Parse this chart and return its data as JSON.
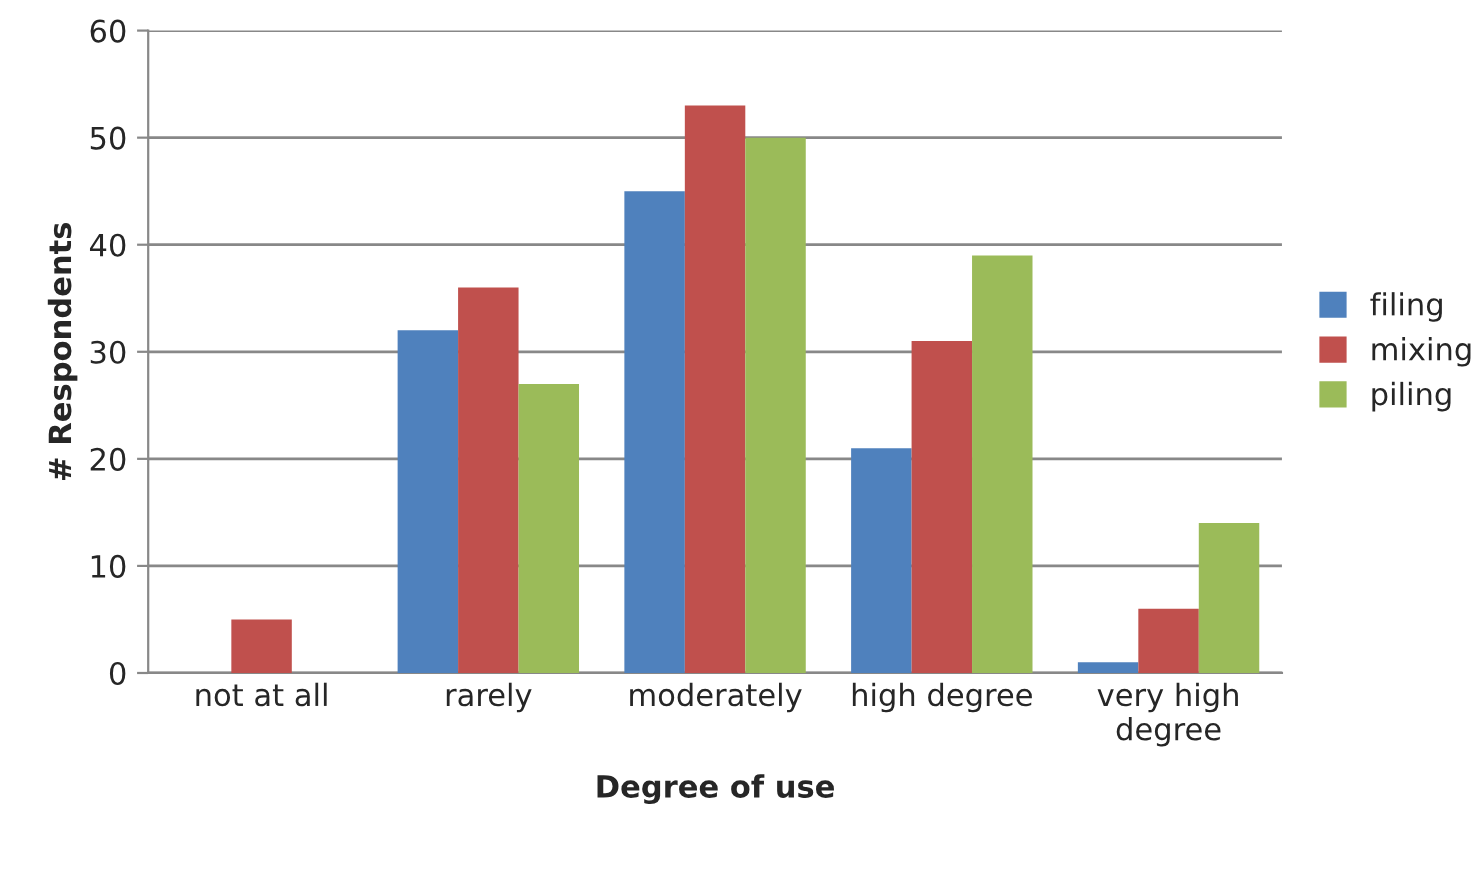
{
  "chart_data": {
    "type": "bar",
    "xlabel": "Degree of use",
    "ylabel": "# Respondents",
    "categories": [
      "not at all",
      "rarely",
      "moderately",
      "high degree",
      "very high\ndegree"
    ],
    "series": [
      {
        "name": "filing",
        "color": "#4f81bd",
        "values": [
          0,
          32,
          45,
          21,
          1
        ]
      },
      {
        "name": "mixing",
        "color": "#c0504d",
        "values": [
          5,
          36,
          53,
          31,
          6
        ]
      },
      {
        "name": "piling",
        "color": "#9bbb59",
        "values": [
          0,
          27,
          50,
          39,
          14
        ]
      }
    ],
    "ylim": [
      0,
      60
    ],
    "yticks": [
      0,
      10,
      20,
      30,
      40,
      50,
      60
    ],
    "grid": "y",
    "legend": "right"
  }
}
